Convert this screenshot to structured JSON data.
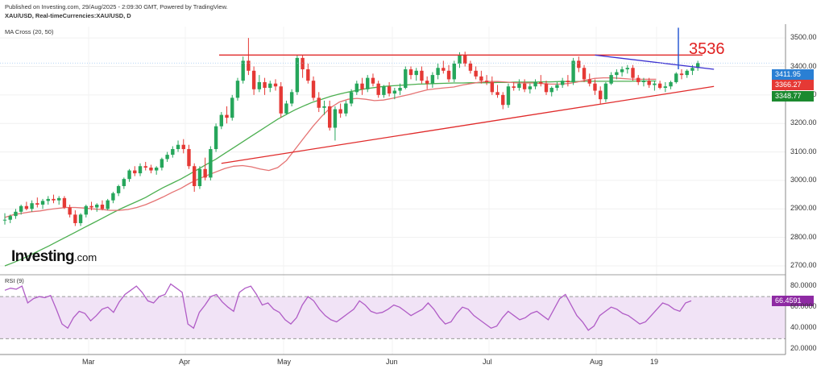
{
  "header": {
    "published": "Published on Investing.com, 29/Aug/2025 - 2:09:30 GMT, Powered by TradingView.",
    "symbol": "XAU/USD, Real-timeCurrencies:XAU/USD, D",
    "indicator": "MA Cross (20, 50)"
  },
  "logo": {
    "name": "Investing",
    "suffix": ".com"
  },
  "annotation": "3536",
  "chart_data": {
    "type": "candlestick",
    "price_axis": {
      "ticks": [
        "3500.00",
        "3400.00",
        "3300.00",
        "3200.00",
        "3100.00",
        "3000.00",
        "2900.00",
        "2800.00",
        "2700.00"
      ],
      "ylim": [
        2700,
        3540
      ]
    },
    "price_labels": [
      {
        "value": "3411.95",
        "color": "#2a7fd4"
      },
      {
        "value": "3366.27",
        "color": "#e53935"
      },
      {
        "value": "3348.77",
        "color": "#1b8a2f"
      }
    ],
    "x_labels": [
      "Mar",
      "Apr",
      "May",
      "Jun",
      "Jul",
      "Aug",
      "19"
    ],
    "candles": [
      [
        2860,
        2885,
        2845,
        2862
      ],
      [
        2862,
        2880,
        2850,
        2875
      ],
      [
        2875,
        2900,
        2865,
        2890
      ],
      [
        2890,
        2915,
        2880,
        2910
      ],
      [
        2910,
        2925,
        2895,
        2900
      ],
      [
        2900,
        2930,
        2890,
        2920
      ],
      [
        2920,
        2940,
        2905,
        2915
      ],
      [
        2915,
        2935,
        2900,
        2928
      ],
      [
        2928,
        2945,
        2915,
        2935
      ],
      [
        2935,
        2950,
        2920,
        2930
      ],
      [
        2930,
        2945,
        2915,
        2938
      ],
      [
        2938,
        2945,
        2900,
        2905
      ],
      [
        2905,
        2915,
        2870,
        2880
      ],
      [
        2880,
        2895,
        2840,
        2850
      ],
      [
        2850,
        2885,
        2840,
        2880
      ],
      [
        2880,
        2915,
        2870,
        2910
      ],
      [
        2910,
        2925,
        2895,
        2905
      ],
      [
        2905,
        2920,
        2890,
        2915
      ],
      [
        2915,
        2930,
        2895,
        2900
      ],
      [
        2900,
        2935,
        2895,
        2930
      ],
      [
        2930,
        2960,
        2920,
        2955
      ],
      [
        2955,
        2985,
        2945,
        2980
      ],
      [
        2980,
        3010,
        2970,
        3005
      ],
      [
        3005,
        3040,
        2995,
        3035
      ],
      [
        3035,
        3050,
        3015,
        3025
      ],
      [
        3025,
        3060,
        3015,
        3050
      ],
      [
        3050,
        3065,
        3035,
        3045
      ],
      [
        3045,
        3055,
        3025,
        3035
      ],
      [
        3035,
        3050,
        3020,
        3045
      ],
      [
        3045,
        3080,
        3035,
        3075
      ],
      [
        3075,
        3100,
        3065,
        3090
      ],
      [
        3090,
        3120,
        3080,
        3110
      ],
      [
        3110,
        3140,
        3100,
        3125
      ],
      [
        3125,
        3145,
        3095,
        3110
      ],
      [
        3110,
        3125,
        3040,
        3050
      ],
      [
        3050,
        3060,
        2960,
        2980
      ],
      [
        2980,
        3050,
        2970,
        3040
      ],
      [
        3040,
        3080,
        3000,
        3010
      ],
      [
        3010,
        3120,
        3000,
        3110
      ],
      [
        3110,
        3200,
        3100,
        3190
      ],
      [
        3190,
        3240,
        3180,
        3230
      ],
      [
        3230,
        3260,
        3200,
        3220
      ],
      [
        3220,
        3300,
        3210,
        3290
      ],
      [
        3290,
        3360,
        3280,
        3350
      ],
      [
        3350,
        3435,
        3340,
        3420
      ],
      [
        3420,
        3500,
        3370,
        3385
      ],
      [
        3385,
        3400,
        3300,
        3320
      ],
      [
        3320,
        3370,
        3310,
        3345
      ],
      [
        3345,
        3360,
        3300,
        3325
      ],
      [
        3325,
        3350,
        3310,
        3340
      ],
      [
        3340,
        3355,
        3315,
        3330
      ],
      [
        3330,
        3345,
        3220,
        3235
      ],
      [
        3235,
        3280,
        3230,
        3270
      ],
      [
        3270,
        3320,
        3260,
        3310
      ],
      [
        3310,
        3440,
        3300,
        3430
      ],
      [
        3430,
        3440,
        3360,
        3390
      ],
      [
        3390,
        3410,
        3340,
        3350
      ],
      [
        3350,
        3365,
        3280,
        3290
      ],
      [
        3290,
        3310,
        3240,
        3255
      ],
      [
        3255,
        3280,
        3230,
        3260
      ],
      [
        3260,
        3280,
        3175,
        3185
      ],
      [
        3185,
        3260,
        3140,
        3250
      ],
      [
        3250,
        3270,
        3220,
        3235
      ],
      [
        3235,
        3280,
        3225,
        3270
      ],
      [
        3270,
        3320,
        3260,
        3310
      ],
      [
        3310,
        3350,
        3300,
        3340
      ],
      [
        3340,
        3360,
        3300,
        3320
      ],
      [
        3320,
        3370,
        3310,
        3360
      ],
      [
        3360,
        3375,
        3330,
        3340
      ],
      [
        3340,
        3350,
        3290,
        3300
      ],
      [
        3300,
        3335,
        3290,
        3330
      ],
      [
        3330,
        3345,
        3295,
        3305
      ],
      [
        3305,
        3325,
        3285,
        3315
      ],
      [
        3315,
        3340,
        3300,
        3325
      ],
      [
        3325,
        3400,
        3320,
        3390
      ],
      [
        3390,
        3400,
        3355,
        3370
      ],
      [
        3370,
        3395,
        3350,
        3385
      ],
      [
        3385,
        3400,
        3340,
        3350
      ],
      [
        3350,
        3365,
        3320,
        3340
      ],
      [
        3340,
        3380,
        3325,
        3370
      ],
      [
        3370,
        3410,
        3355,
        3395
      ],
      [
        3395,
        3420,
        3375,
        3385
      ],
      [
        3385,
        3405,
        3345,
        3355
      ],
      [
        3355,
        3420,
        3345,
        3410
      ],
      [
        3410,
        3450,
        3395,
        3440
      ],
      [
        3440,
        3452,
        3400,
        3410
      ],
      [
        3410,
        3420,
        3375,
        3385
      ],
      [
        3385,
        3400,
        3355,
        3365
      ],
      [
        3365,
        3385,
        3340,
        3350
      ],
      [
        3350,
        3370,
        3335,
        3345
      ],
      [
        3345,
        3365,
        3300,
        3310
      ],
      [
        3310,
        3335,
        3290,
        3300
      ],
      [
        3300,
        3310,
        3250,
        3265
      ],
      [
        3265,
        3340,
        3255,
        3330
      ],
      [
        3330,
        3345,
        3315,
        3325
      ],
      [
        3325,
        3355,
        3315,
        3340
      ],
      [
        3340,
        3355,
        3310,
        3320
      ],
      [
        3320,
        3340,
        3305,
        3330
      ],
      [
        3330,
        3355,
        3320,
        3345
      ],
      [
        3345,
        3370,
        3330,
        3340
      ],
      [
        3340,
        3350,
        3300,
        3310
      ],
      [
        3310,
        3330,
        3295,
        3325
      ],
      [
        3325,
        3345,
        3315,
        3335
      ],
      [
        3335,
        3360,
        3325,
        3350
      ],
      [
        3350,
        3370,
        3330,
        3345
      ],
      [
        3345,
        3430,
        3335,
        3420
      ],
      [
        3420,
        3435,
        3380,
        3395
      ],
      [
        3395,
        3405,
        3345,
        3355
      ],
      [
        3355,
        3375,
        3330,
        3340
      ],
      [
        3340,
        3355,
        3300,
        3315
      ],
      [
        3315,
        3330,
        3270,
        3285
      ],
      [
        3285,
        3345,
        3275,
        3340
      ],
      [
        3340,
        3380,
        3335,
        3370
      ],
      [
        3370,
        3390,
        3355,
        3380
      ],
      [
        3380,
        3400,
        3365,
        3390
      ],
      [
        3390,
        3405,
        3375,
        3395
      ],
      [
        3395,
        3405,
        3350,
        3360
      ],
      [
        3360,
        3370,
        3335,
        3345
      ],
      [
        3345,
        3360,
        3330,
        3350
      ],
      [
        3350,
        3360,
        3325,
        3335
      ],
      [
        3335,
        3350,
        3315,
        3340
      ],
      [
        3340,
        3350,
        3320,
        3325
      ],
      [
        3325,
        3345,
        3310,
        3330
      ],
      [
        3330,
        3350,
        3320,
        3345
      ],
      [
        3345,
        3380,
        3340,
        3375
      ],
      [
        3375,
        3390,
        3355,
        3370
      ],
      [
        3370,
        3390,
        3360,
        3385
      ],
      [
        3385,
        3405,
        3370,
        3395
      ],
      [
        3395,
        3420,
        3385,
        3412
      ]
    ],
    "ma20": [
      2870,
      2880,
      2885,
      2890,
      2893,
      2898,
      2902,
      2905,
      2905,
      2903,
      2900,
      2898,
      2895,
      2895,
      2898,
      2905,
      2915,
      2928,
      2942,
      2958,
      2972,
      2990,
      3005,
      3018,
      3030,
      3042,
      3050,
      3052,
      3048,
      3040,
      3035,
      3045,
      3070,
      3110,
      3150,
      3190,
      3225,
      3255,
      3275,
      3285,
      3288,
      3285,
      3280,
      3282,
      3288,
      3295,
      3302,
      3310,
      3318,
      3322,
      3325,
      3328,
      3335,
      3340,
      3345,
      3347,
      3347,
      3345,
      3343,
      3342,
      3342,
      3340,
      3338,
      3338,
      3340,
      3345,
      3352,
      3358,
      3360,
      3360,
      3358,
      3356,
      3355,
      3355,
      3355
    ],
    "ma20_x_step": 9.5,
    "ma50": [
      2700,
      2712,
      2725,
      2740,
      2755,
      2770,
      2786,
      2802,
      2818,
      2834,
      2850,
      2866,
      2882,
      2898,
      2912,
      2926,
      2940,
      2958,
      2975,
      2990,
      3005,
      3022,
      3040,
      3058,
      3075,
      3095,
      3115,
      3135,
      3155,
      3175,
      3195,
      3215,
      3232,
      3248,
      3262,
      3275,
      3285,
      3295,
      3303,
      3310,
      3316,
      3322,
      3326,
      3330,
      3332,
      3334,
      3336,
      3338,
      3339,
      3340,
      3341,
      3342,
      3342,
      3343,
      3343,
      3343,
      3344,
      3344,
      3345,
      3345,
      3345,
      3346,
      3346,
      3347,
      3347,
      3347,
      3348,
      3348,
      3348,
      3348,
      3348,
      3348,
      3349,
      3349,
      3349
    ],
    "horizontal_resistance": 3440,
    "trendlines": [
      {
        "name": "descending",
        "from": [
          109,
          3440
        ],
        "to": [
          128,
          3390
        ],
        "color": "#3b2fd0"
      },
      {
        "name": "ascending",
        "from": [
          40,
          3060
        ],
        "to": [
          128,
          3330
        ],
        "color": "#e02a2a"
      }
    ],
    "spike": {
      "from": 3390,
      "to": 3536
    },
    "rsi": {
      "label": "RSI (9)",
      "ticks": [
        "80.0000",
        "60.0000",
        "40.0000",
        "20.0000"
      ],
      "bands": [
        70,
        30
      ],
      "ylim": [
        15,
        90
      ],
      "current": "66.4591",
      "values": [
        76,
        78,
        77,
        80,
        64,
        68,
        70,
        69,
        71,
        58,
        44,
        40,
        50,
        56,
        54,
        47,
        52,
        58,
        60,
        55,
        65,
        72,
        76,
        80,
        74,
        66,
        64,
        70,
        72,
        82,
        78,
        74,
        44,
        40,
        55,
        62,
        70,
        72,
        65,
        60,
        56,
        74,
        78,
        80,
        72,
        62,
        64,
        58,
        55,
        48,
        44,
        50,
        62,
        70,
        66,
        58,
        52,
        48,
        46,
        50,
        54,
        58,
        66,
        62,
        56,
        54,
        55,
        58,
        62,
        60,
        56,
        52,
        55,
        58,
        64,
        58,
        50,
        44,
        46,
        54,
        60,
        58,
        52,
        48,
        44,
        40,
        42,
        50,
        56,
        52,
        48,
        50,
        54,
        56,
        52,
        48,
        58,
        68,
        72,
        62,
        52,
        46,
        38,
        42,
        52,
        56,
        60,
        58,
        54,
        52,
        48,
        44,
        46,
        52,
        58,
        64,
        62,
        58,
        56,
        64,
        66
      ]
    }
  }
}
